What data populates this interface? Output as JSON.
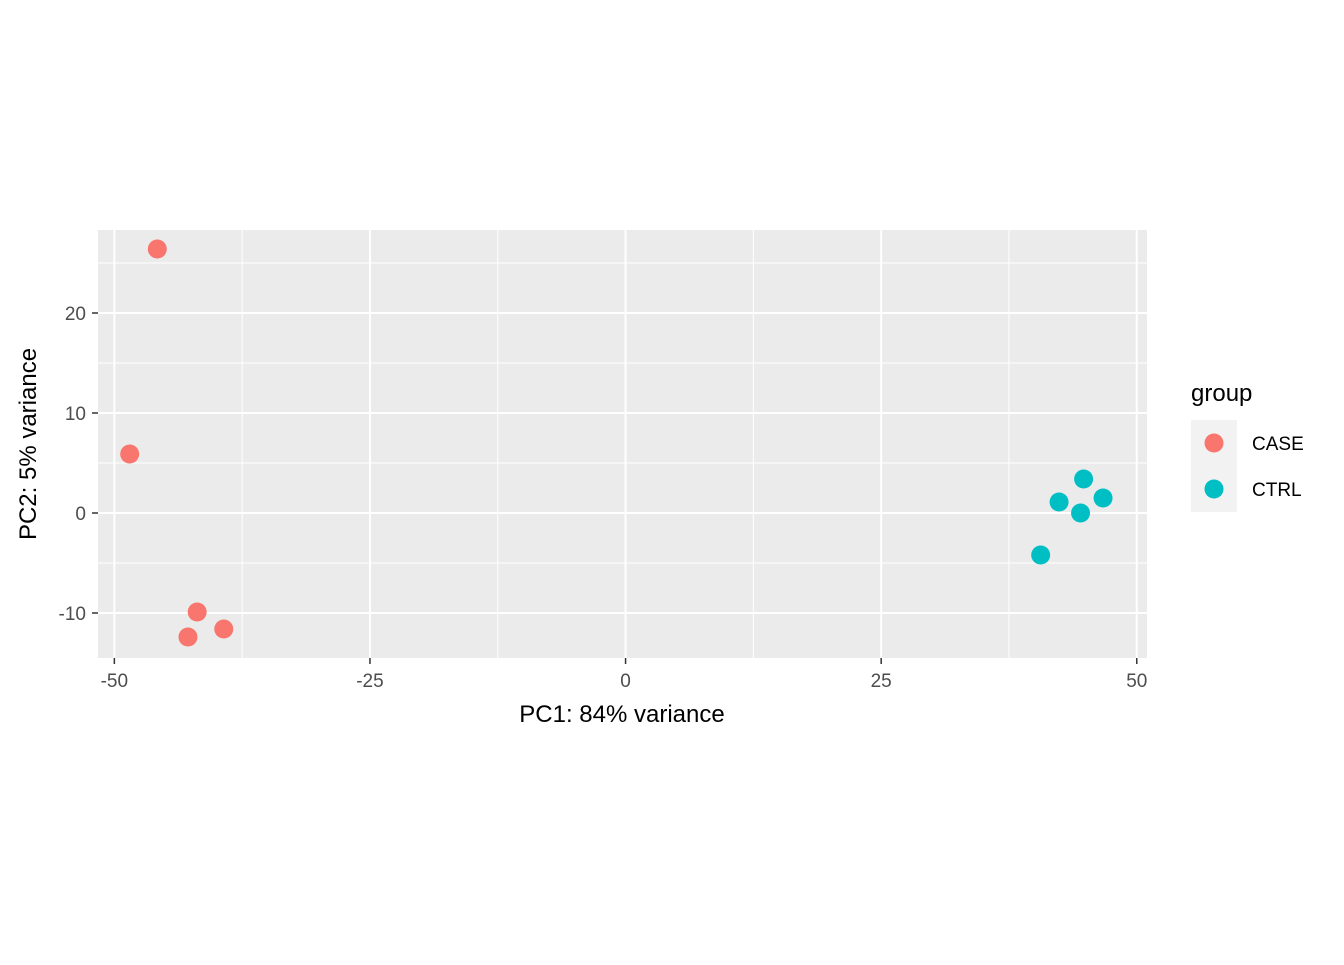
{
  "chart_data": {
    "type": "scatter",
    "xlabel": "PC1: 84% variance",
    "ylabel": "PC2: 5% variance",
    "xlim": [
      -51.6,
      51.0
    ],
    "ylim": [
      -14.5,
      28.3
    ],
    "x_ticks": [
      -50,
      -25,
      0,
      25,
      50
    ],
    "y_ticks": [
      -10,
      0,
      10,
      20
    ],
    "x_tick_labels": [
      "-50",
      "-25",
      "0",
      "25",
      "50"
    ],
    "y_tick_labels": [
      "-10",
      "0",
      "10",
      "20"
    ],
    "grid": true,
    "background": "#EBEBEB",
    "legend": {
      "title": "group",
      "position": "right",
      "entries": [
        {
          "label": "CASE",
          "color": "#F8766D"
        },
        {
          "label": "CTRL",
          "color": "#00BFC4"
        }
      ]
    },
    "series": [
      {
        "name": "CASE",
        "color": "#F8766D",
        "points": [
          {
            "x": -45.8,
            "y": 26.4
          },
          {
            "x": -48.5,
            "y": 5.9
          },
          {
            "x": -41.9,
            "y": -9.9
          },
          {
            "x": -42.8,
            "y": -12.4
          },
          {
            "x": -39.3,
            "y": -11.6
          }
        ]
      },
      {
        "name": "CTRL",
        "color": "#00BFC4",
        "points": [
          {
            "x": 44.8,
            "y": 3.4
          },
          {
            "x": 42.4,
            "y": 1.1
          },
          {
            "x": 46.7,
            "y": 1.5
          },
          {
            "x": 44.5,
            "y": 0.0
          },
          {
            "x": 40.6,
            "y": -4.2
          }
        ]
      }
    ]
  }
}
